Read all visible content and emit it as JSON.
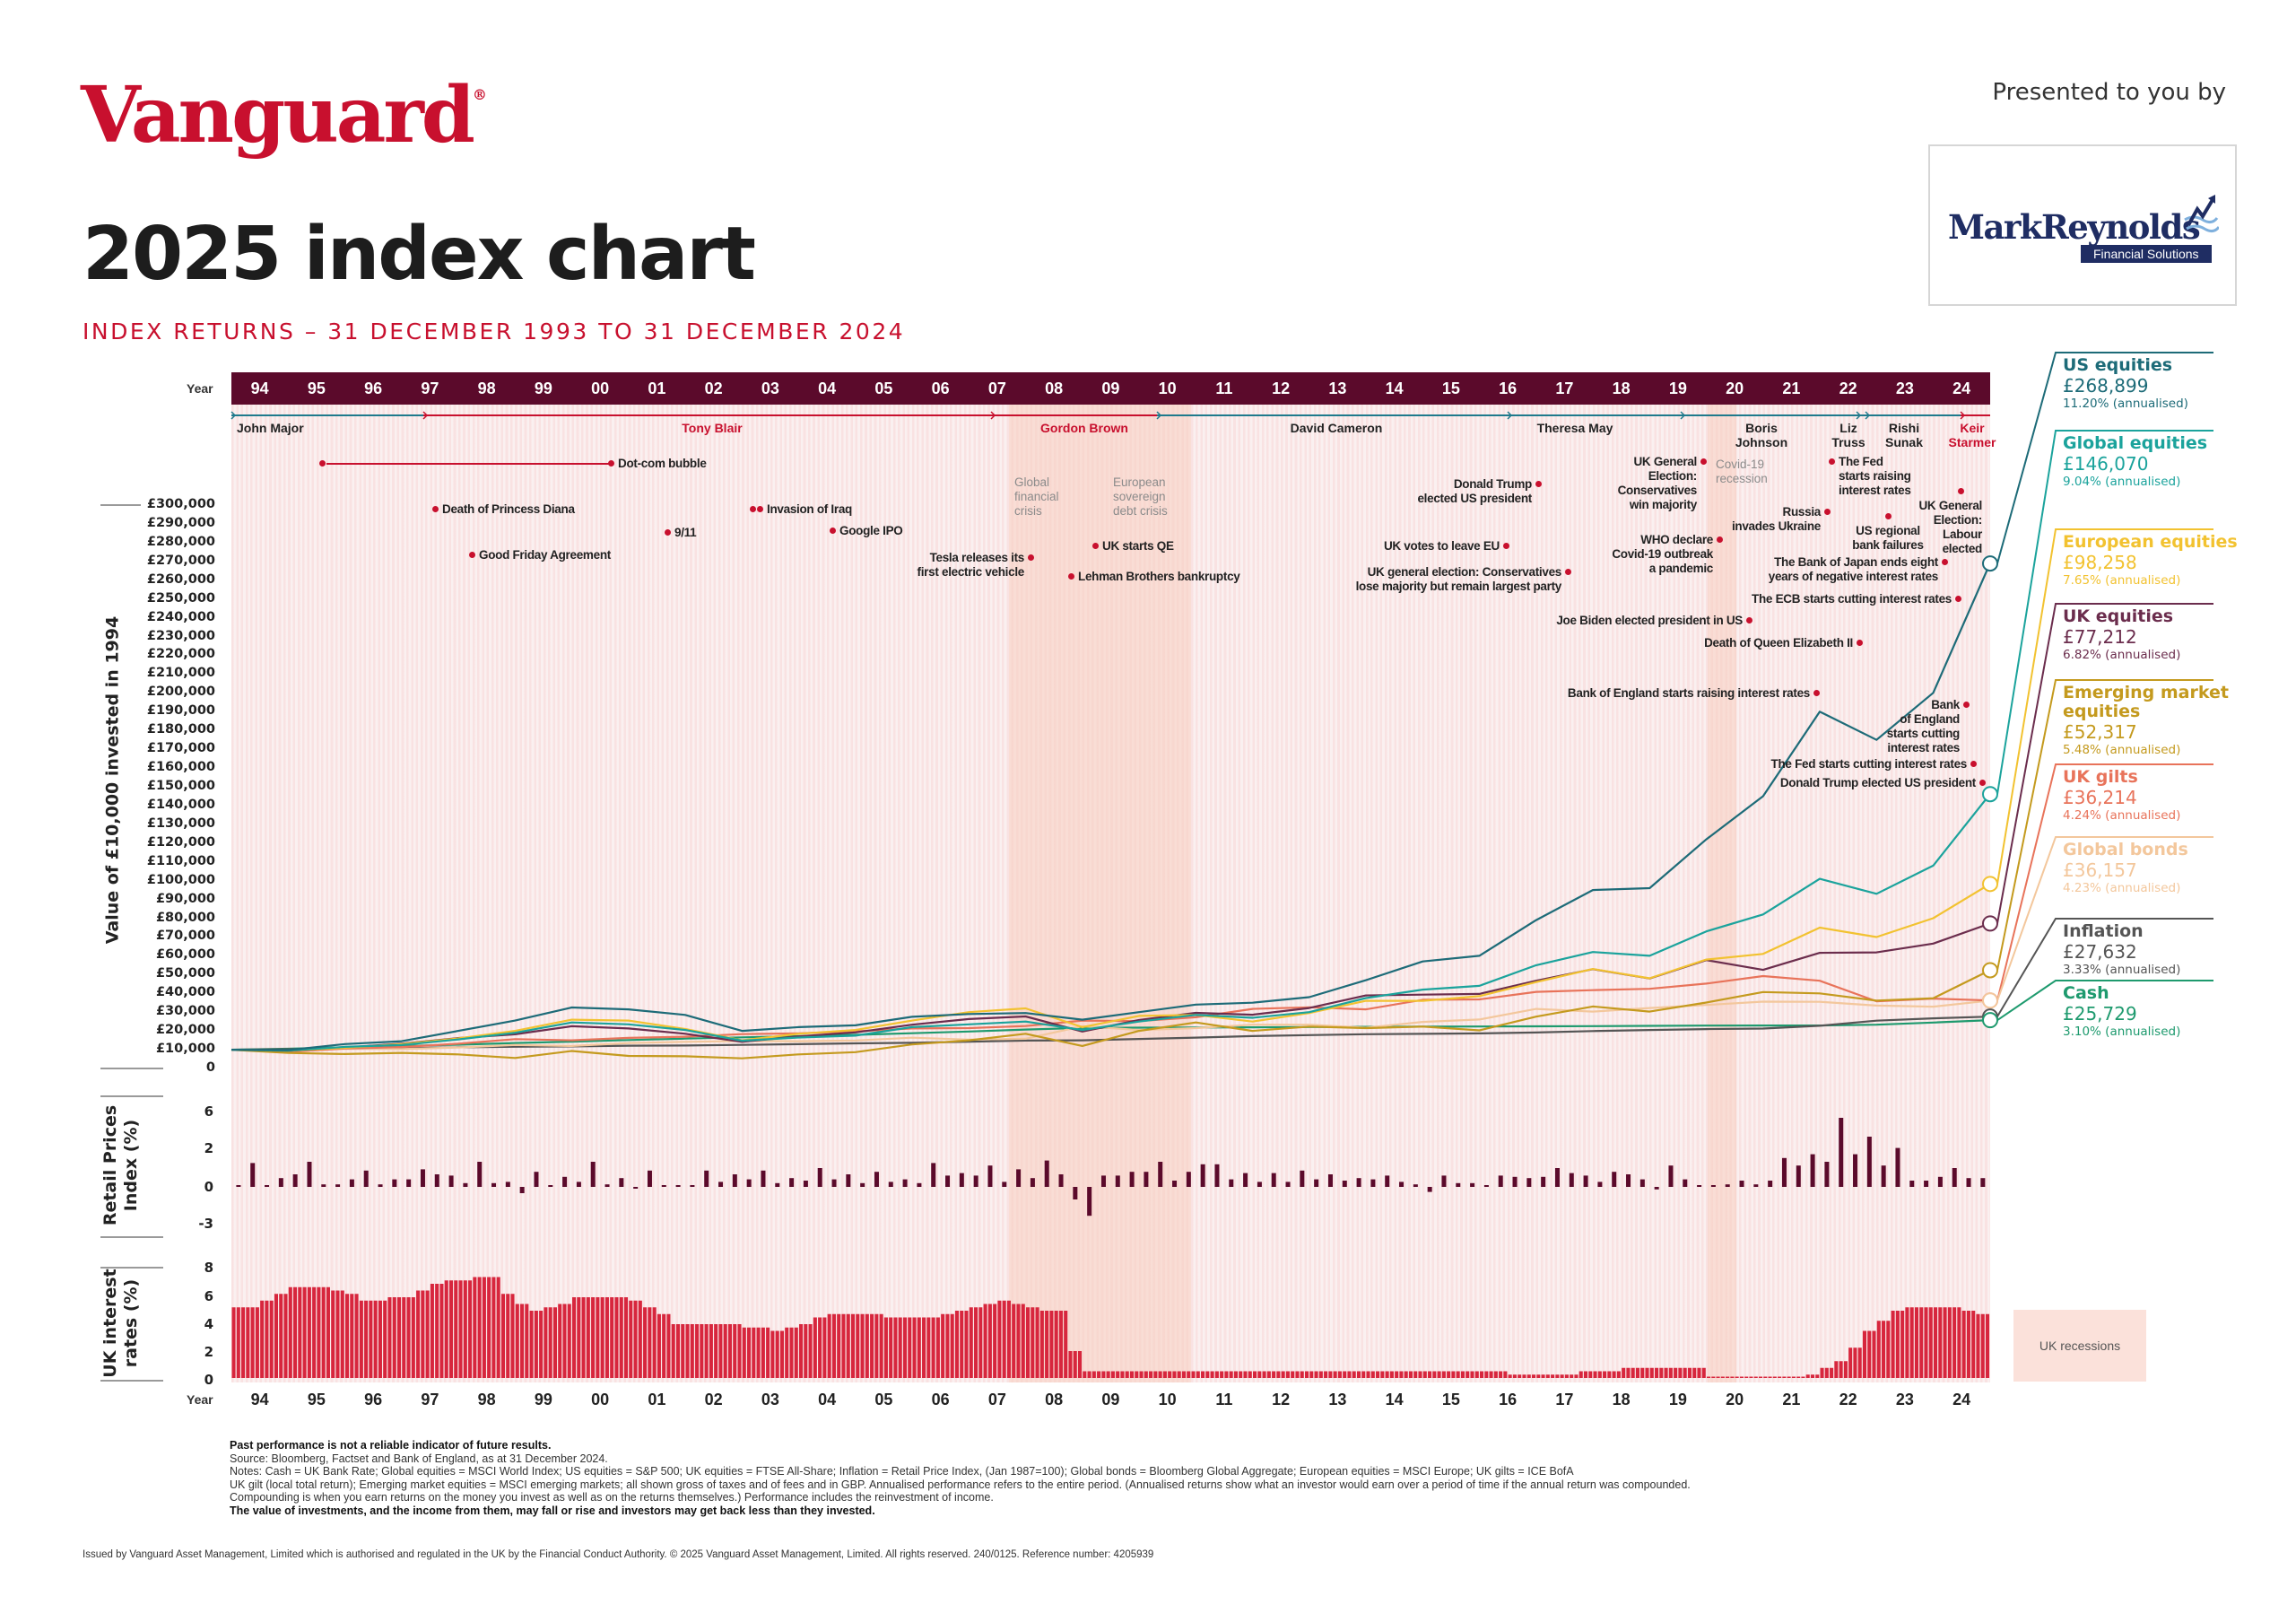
{
  "header": {
    "brand": "Vanguard",
    "presented_by": "Presented to you by",
    "partner_logo": {
      "name": "MarkReynolds",
      "tagline": "Financial Solutions"
    },
    "title": "2025 index chart",
    "subtitle": "INDEX RETURNS – 31 DECEMBER 1993 TO 31 DECEMBER 2024"
  },
  "year_axis": {
    "label": "Year",
    "years": [
      "94",
      "95",
      "96",
      "97",
      "98",
      "99",
      "00",
      "01",
      "02",
      "03",
      "04",
      "05",
      "06",
      "07",
      "08",
      "09",
      "10",
      "11",
      "12",
      "13",
      "14",
      "15",
      "16",
      "17",
      "18",
      "19",
      "20",
      "21",
      "22",
      "23",
      "24"
    ]
  },
  "prime_ministers": [
    {
      "name": "John Major",
      "color": "#1f7a8c"
    },
    {
      "name": "Tony Blair",
      "color": "#c8102e"
    },
    {
      "name": "Gordon Brown",
      "color": "#c8102e"
    },
    {
      "name": "David Cameron",
      "color": "#1f7a8c"
    },
    {
      "name": "Theresa May",
      "color": "#1f7a8c"
    },
    {
      "name": "Boris\nJohnson",
      "color": "#1f7a8c"
    },
    {
      "name": "Liz\nTruss",
      "color": "#1f7a8c"
    },
    {
      "name": "Rishi\nSunak",
      "color": "#1f7a8c"
    },
    {
      "name": "Keir\nStarmer",
      "color": "#c8102e"
    }
  ],
  "period_labels": [
    "Global\nfinancial\ncrisis",
    "European\nsovereign\ndebt crisis",
    "Covid-19\nrecession"
  ],
  "events": [
    "Dot-com bubble",
    "Death of Princess Diana",
    "Good Friday Agreement",
    "9/11",
    "Invasion of Iraq",
    "Google IPO",
    "Tesla releases its\nfirst electric vehicle",
    "UK starts QE",
    "Lehman Brothers bankruptcy",
    "Donald Trump\nelected US president",
    "UK votes to leave EU",
    "UK general election: Conservatives\nlose majority but remain largest party",
    "UK General\nElection:\nConservatives\nwin majority",
    "WHO declare\nCovid-19 outbreak\na pandemic",
    "Joe Biden elected president in US",
    "Russia\ninvades Ukraine",
    "The Fed\nstarts raising\ninterest rates",
    "US regional\nbank failures",
    "UK General\nElection:\nLabour\nelected",
    "The Bank of Japan ends eight\nyears of negative interest rates",
    "The ECB starts cutting interest rates",
    "Death of Queen Elizabeth II",
    "Bank of England starts raising interest rates",
    "Bank\nof England\nstarts cutting\ninterest rates",
    "The Fed starts cutting interest rates",
    "Donald Trump elected US president"
  ],
  "chart_data": [
    {
      "type": "line",
      "title": "Value of £10,000 invested in 1994",
      "xlabel": "Year",
      "ylabel": "Value of £10,000 invested in 1994",
      "x": [
        1993,
        1994,
        1995,
        1996,
        1997,
        1998,
        1999,
        2000,
        2001,
        2002,
        2003,
        2004,
        2005,
        2006,
        2007,
        2008,
        2009,
        2010,
        2011,
        2012,
        2013,
        2014,
        2015,
        2016,
        2017,
        2018,
        2019,
        2020,
        2021,
        2022,
        2023,
        2024
      ],
      "ylim": [
        0,
        300000
      ],
      "yticks": [
        "£300,000",
        "£290,000",
        "£280,000",
        "£270,000",
        "£260,000",
        "£250,000",
        "£240,000",
        "£230,000",
        "£220,000",
        "£210,000",
        "£200,000",
        "£190,000",
        "£180,000",
        "£170,000",
        "£160,000",
        "£150,000",
        "£140,000",
        "£130,000",
        "£120,000",
        "£110,000",
        "£100,000",
        "£90,000",
        "£80,000",
        "£70,000",
        "£60,000",
        "£50,000",
        "£40,000",
        "£30,000",
        "£20,000",
        "£10,000",
        "0"
      ],
      "series": [
        {
          "name": "US equities",
          "color": "#1d6b78",
          "values": [
            10000,
            9800,
            13000,
            14500,
            20000,
            25500,
            32500,
            31500,
            28500,
            20000,
            22000,
            23000,
            27500,
            29000,
            29500,
            26000,
            30000,
            34000,
            35000,
            38000,
            47000,
            57000,
            60000,
            79000,
            95000,
            96000,
            122000,
            145000,
            190000,
            175000,
            200000,
            268899
          ]
        },
        {
          "name": "Global equities",
          "color": "#1ba39c",
          "values": [
            10000,
            9500,
            11500,
            12500,
            15500,
            19000,
            24500,
            23500,
            20500,
            14800,
            16500,
            17500,
            22000,
            23500,
            25000,
            20500,
            25000,
            28500,
            27000,
            30000,
            37500,
            42000,
            44000,
            55000,
            62000,
            60000,
            73000,
            82000,
            101000,
            93000,
            108000,
            146070
          ]
        },
        {
          "name": "European equities",
          "color": "#f2c230",
          "values": [
            10000,
            9500,
            11000,
            13000,
            16000,
            20000,
            26000,
            25500,
            21000,
            15000,
            18500,
            20500,
            25500,
            30000,
            32000,
            22000,
            28000,
            28500,
            25000,
            29500,
            36000,
            36000,
            38500,
            46000,
            53000,
            48000,
            58000,
            61000,
            75000,
            70000,
            80000,
            98258
          ]
        },
        {
          "name": "UK equities",
          "color": "#6b2d4d",
          "values": [
            10000,
            9400,
            11200,
            13200,
            16200,
            18200,
            22500,
            21300,
            18500,
            14200,
            17100,
            19200,
            23300,
            26300,
            27700,
            19700,
            25800,
            29600,
            28600,
            32200,
            38900,
            39300,
            39700,
            46700,
            52900,
            47900,
            57700,
            52500,
            61600,
            61800,
            66500,
            77212
          ]
        },
        {
          "name": "Emerging market equities",
          "color": "#c49a1e",
          "values": [
            10000,
            8300,
            7700,
            8300,
            7500,
            5600,
            9300,
            6700,
            6500,
            5400,
            7500,
            8700,
            12800,
            15000,
            18500,
            12000,
            20000,
            24500,
            20000,
            22300,
            21500,
            22300,
            20300,
            27600,
            33000,
            30300,
            35100,
            40700,
            40000,
            36100,
            37400,
            52317
          ]
        },
        {
          "name": "UK gilts",
          "color": "#e8735a",
          "values": [
            10000,
            8900,
            10600,
            11400,
            13200,
            15600,
            15000,
            16300,
            16900,
            18300,
            18700,
            19800,
            21300,
            21500,
            22600,
            25500,
            25200,
            27300,
            31700,
            32600,
            31500,
            36600,
            36800,
            40800,
            41700,
            42400,
            45200,
            49200,
            46700,
            35800,
            37200,
            36214
          ]
        },
        {
          "name": "Global bonds",
          "color": "#f3c79c",
          "values": [
            10000,
            9000,
            10500,
            10300,
            11200,
            12500,
            12000,
            13500,
            14200,
            14600,
            14500,
            14900,
            16400,
            15400,
            15800,
            22500,
            20500,
            21500,
            23300,
            23300,
            21700,
            24800,
            26100,
            31700,
            30300,
            32200,
            33800,
            35600,
            35500,
            33500,
            32900,
            36157
          ]
        },
        {
          "name": "Inflation",
          "color": "#555555",
          "values": [
            10000,
            10290,
            10610,
            10860,
            11260,
            11570,
            11770,
            12120,
            12230,
            12580,
            12940,
            13360,
            13680,
            14280,
            14860,
            14990,
            15700,
            16450,
            17230,
            17770,
            18250,
            18430,
            18660,
            19160,
            19930,
            20470,
            20970,
            21240,
            22760,
            25460,
            26680,
            27632
          ]
        },
        {
          "name": "Cash",
          "color": "#1e9a6e",
          "values": [
            10000,
            10530,
            11260,
            11930,
            12670,
            13580,
            14280,
            15140,
            15930,
            16570,
            17190,
            17920,
            18770,
            19660,
            20740,
            21610,
            21750,
            21850,
            21950,
            22050,
            22160,
            22270,
            22380,
            22470,
            22540,
            22670,
            22830,
            22880,
            22900,
            23300,
            24470,
            25729
          ]
        }
      ]
    },
    {
      "type": "bar",
      "title": "Retail Prices Index (%)",
      "frequency": "quarterly",
      "start": "1994 Q1",
      "yticks": [
        "6",
        "2",
        "0",
        "-3"
      ],
      "color": "#5b0a2b",
      "values": [
        0.1,
        1.9,
        0.05,
        0.7,
        1.0,
        2.0,
        0.2,
        0.2,
        0.6,
        1.3,
        0.2,
        0.6,
        0.6,
        1.4,
        1.0,
        0.9,
        0.3,
        2.0,
        0.3,
        0.4,
        -0.5,
        1.2,
        0.05,
        0.8,
        0.4,
        2.0,
        0.2,
        0.7,
        -0.1,
        1.3,
        0.05,
        0.05,
        0.05,
        1.3,
        0.4,
        1.0,
        0.6,
        1.3,
        0.3,
        0.7,
        0.5,
        1.5,
        0.6,
        1.0,
        0.3,
        1.2,
        0.4,
        0.6,
        0.3,
        1.9,
        0.9,
        1.1,
        0.9,
        1.7,
        0.4,
        1.4,
        0.7,
        2.1,
        1.0,
        -1.0,
        -2.3,
        0.9,
        0.9,
        1.2,
        1.2,
        2.0,
        0.5,
        1.2,
        1.8,
        1.8,
        0.6,
        1.1,
        0.4,
        1.1,
        0.4,
        1.3,
        0.6,
        1.0,
        0.5,
        0.7,
        0.6,
        0.9,
        0.4,
        0.2,
        -0.4,
        0.9,
        0.3,
        0.3,
        0.0,
        0.9,
        0.8,
        0.7,
        0.8,
        1.5,
        1.1,
        0.9,
        0.4,
        1.2,
        1.0,
        0.6,
        -0.2,
        1.7,
        0.6,
        0.1,
        0.1,
        0.2,
        0.5,
        0.2,
        0.5,
        2.3,
        1.7,
        2.6,
        2.0,
        5.5,
        2.6,
        4.0,
        1.7,
        3.1,
        0.5,
        0.5,
        0.8,
        1.5,
        0.7,
        0.7
      ]
    },
    {
      "type": "bar",
      "title": "UK interest rates (%)",
      "frequency": "quarterly",
      "start": "1994 Q1",
      "yticks": [
        "8",
        "6",
        "4",
        "2",
        "0"
      ],
      "color": "#d7263d",
      "values": [
        5.25,
        5.25,
        5.75,
        6.25,
        6.75,
        6.75,
        6.75,
        6.5,
        6.25,
        5.75,
        5.75,
        6.0,
        6.0,
        6.5,
        7.0,
        7.25,
        7.25,
        7.5,
        7.5,
        6.25,
        5.5,
        5.0,
        5.25,
        5.5,
        6.0,
        6.0,
        6.0,
        6.0,
        5.75,
        5.25,
        4.75,
        4.0,
        4.0,
        4.0,
        4.0,
        4.0,
        3.75,
        3.75,
        3.5,
        3.75,
        4.0,
        4.5,
        4.75,
        4.75,
        4.75,
        4.75,
        4.5,
        4.5,
        4.5,
        4.5,
        4.75,
        5.0,
        5.25,
        5.5,
        5.75,
        5.5,
        5.25,
        5.0,
        5.0,
        2.0,
        0.5,
        0.5,
        0.5,
        0.5,
        0.5,
        0.5,
        0.5,
        0.5,
        0.5,
        0.5,
        0.5,
        0.5,
        0.5,
        0.5,
        0.5,
        0.5,
        0.5,
        0.5,
        0.5,
        0.5,
        0.5,
        0.5,
        0.5,
        0.5,
        0.5,
        0.5,
        0.5,
        0.5,
        0.5,
        0.5,
        0.25,
        0.25,
        0.25,
        0.25,
        0.25,
        0.5,
        0.5,
        0.5,
        0.75,
        0.75,
        0.75,
        0.75,
        0.75,
        0.75,
        0.1,
        0.1,
        0.1,
        0.1,
        0.1,
        0.1,
        0.1,
        0.25,
        0.75,
        1.25,
        2.25,
        3.5,
        4.25,
        5.0,
        5.25,
        5.25,
        5.25,
        5.25,
        5.0,
        4.75
      ]
    }
  ],
  "legend": [
    {
      "name": "US equities",
      "value": "£268,899",
      "annualised": "11.20% (annualised)",
      "color": "#1d6b78"
    },
    {
      "name": "Global equities",
      "value": "£146,070",
      "annualised": "9.04% (annualised)",
      "color": "#1ba39c"
    },
    {
      "name": "European equities",
      "value": "£98,258",
      "annualised": "7.65% (annualised)",
      "color": "#f2c230"
    },
    {
      "name": "UK equities",
      "value": "£77,212",
      "annualised": "6.82% (annualised)",
      "color": "#6b2d4d"
    },
    {
      "name": "Emerging market\nequities",
      "value": "£52,317",
      "annualised": "5.48% (annualised)",
      "color": "#c49a1e"
    },
    {
      "name": "UK gilts",
      "value": "£36,214",
      "annualised": "4.24% (annualised)",
      "color": "#e8735a"
    },
    {
      "name": "Global bonds",
      "value": "£36,157",
      "annualised": "4.23% (annualised)",
      "color": "#f3c79c"
    },
    {
      "name": "Inflation",
      "value": "£27,632",
      "annualised": "3.33% (annualised)",
      "color": "#555555"
    },
    {
      "name": "Cash",
      "value": "£25,729",
      "annualised": "3.10% (annualised)",
      "color": "#1e9a6e"
    }
  ],
  "recession_legend": "UK recessions",
  "footer": {
    "disclaimer": "Past performance is not a reliable indicator of future results.",
    "source": "Source: Bloomberg, Factset and Bank of England, as at 31 December 2024.",
    "notes": "Notes: Cash = UK Bank Rate; Global equities = MSCI World Index; US equities = S&P 500; UK equities = FTSE All-Share; Inflation = Retail Price Index, (Jan 1987=100); Global bonds = Bloomberg Global Aggregate; European equities = MSCI Europe; UK gilts = ICE BofA",
    "notes2": "UK gilt (local total return); Emerging market equities = MSCI emerging markets; all shown gross of taxes and of fees and in GBP. Annualised performance refers to the entire period. (Annualised returns show what an investor would earn over a period of time if the annual return was compounded.",
    "notes3": "Compounding is when you earn returns on the money you invest as well as on the returns themselves.) Performance includes the reinvestment of income.",
    "warning": "The value of investments, and the income from them, may fall or rise and investors may get back less than they invested.",
    "issued": "Issued by Vanguard Asset Management, Limited which is authorised and regulated in the UK by the Financial Conduct Authority. © 2025 Vanguard Asset Management, Limited. All rights reserved. 240/0125. Reference number: 4205939"
  }
}
